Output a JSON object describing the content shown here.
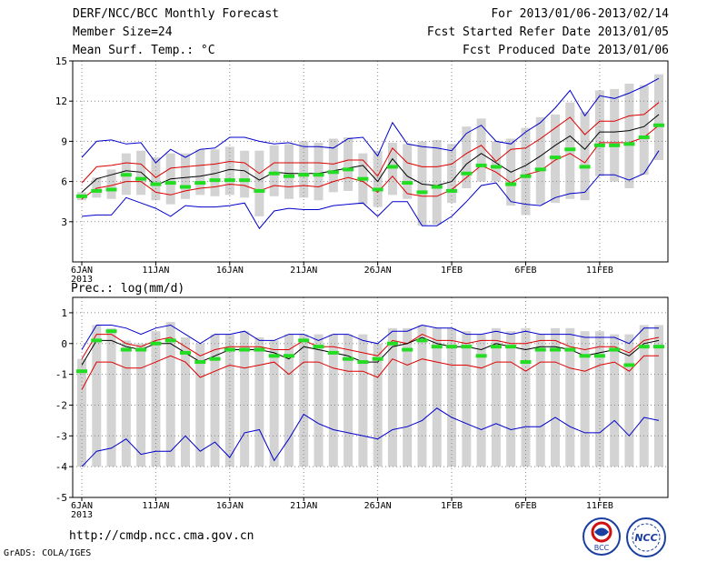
{
  "header": {
    "title": "DERF/NCC/BCC Monthly Forecast",
    "member_size": "Member Size=24",
    "variable": "Mean Surf. Temp.: °C",
    "period": "For 2013/01/06-2013/02/14",
    "fcst_started": "Fcst Started Refer Date 2013/01/05",
    "fcst_produced": "Fcst Produced Date 2013/01/06"
  },
  "footer": {
    "url": "http://cmdp.ncc.cma.gov.cn",
    "credit": "GrADS: COLA/IGES",
    "logo_left_text": "BCC",
    "logo_right_text": "NCC"
  },
  "colors": {
    "box": "#d3d3d3",
    "mean": "#000000",
    "inner": "#dd0000",
    "outer": "#0000cc",
    "obs": "#22dd22",
    "grid": "#888888"
  },
  "chart_data": [
    {
      "type": "box-line",
      "title": "Mean Surf. Temp.: °C",
      "x": [
        1,
        2,
        3,
        4,
        5,
        6,
        7,
        8,
        9,
        10,
        11,
        12,
        13,
        14,
        15,
        16,
        17,
        18,
        19,
        20,
        21,
        22,
        23,
        24,
        25,
        26,
        27,
        28,
        29,
        30,
        31,
        32,
        33,
        34,
        35,
        36,
        37,
        38,
        39,
        40
      ],
      "tick_labels": [
        "6JAN\n2013",
        "11JAN",
        "16JAN",
        "21JAN",
        "26JAN",
        "1FEB",
        "6FEB",
        "11FEB"
      ],
      "tick_positions": [
        1,
        6,
        11,
        16,
        21,
        26,
        31,
        36
      ],
      "ylim": [
        0,
        15
      ],
      "yticks": [
        3,
        6,
        9,
        12,
        15
      ],
      "series": [
        {
          "name": "max",
          "values": [
            7.8,
            9.0,
            9.1,
            8.8,
            8.9,
            7.4,
            8.4,
            7.8,
            8.4,
            8.5,
            9.3,
            9.3,
            9.0,
            8.8,
            8.9,
            8.6,
            8.6,
            8.5,
            9.2,
            9.3,
            7.9,
            10.4,
            8.8,
            8.6,
            8.5,
            8.3,
            9.6,
            10.2,
            9.0,
            8.8,
            9.7,
            10.4,
            11.5,
            12.8,
            10.9,
            12.4,
            12.2,
            12.6,
            13.1,
            13.7
          ]
        },
        {
          "name": "upper",
          "values": [
            5.9,
            7.1,
            7.2,
            7.4,
            7.3,
            6.3,
            7.0,
            7.1,
            7.2,
            7.3,
            7.5,
            7.4,
            6.6,
            7.4,
            7.4,
            7.4,
            7.4,
            7.3,
            7.6,
            7.6,
            6.4,
            8.5,
            7.4,
            7.1,
            7.1,
            7.3,
            8.1,
            8.7,
            7.5,
            8.4,
            8.5,
            9.2,
            10.0,
            10.8,
            9.5,
            10.5,
            10.5,
            10.9,
            11.0,
            11.9
          ]
        },
        {
          "name": "mean",
          "values": [
            5.2,
            6.2,
            6.5,
            6.8,
            6.7,
            5.7,
            6.2,
            6.3,
            6.4,
            6.6,
            6.9,
            6.8,
            6.1,
            6.7,
            6.6,
            6.6,
            6.6,
            6.8,
            7.0,
            7.2,
            6.0,
            7.7,
            6.4,
            5.8,
            5.7,
            6.0,
            7.3,
            8.1,
            7.4,
            6.7,
            7.2,
            7.9,
            8.7,
            9.4,
            8.4,
            9.7,
            9.7,
            9.8,
            10.1,
            11.0
          ]
        },
        {
          "name": "lower",
          "values": [
            4.7,
            5.5,
            5.7,
            6.0,
            6.0,
            5.2,
            5.0,
            5.3,
            5.5,
            5.6,
            5.8,
            5.7,
            5.3,
            5.7,
            5.6,
            5.7,
            5.6,
            6.0,
            6.3,
            6.0,
            5.2,
            6.4,
            5.1,
            4.9,
            4.9,
            5.4,
            6.3,
            7.2,
            6.7,
            5.9,
            6.5,
            6.8,
            7.6,
            8.1,
            7.4,
            8.9,
            8.9,
            8.9,
            9.3,
            10.2
          ]
        },
        {
          "name": "min",
          "values": [
            3.4,
            3.5,
            3.5,
            4.8,
            4.4,
            4.0,
            3.4,
            4.2,
            4.1,
            4.1,
            4.2,
            4.4,
            2.5,
            3.8,
            4.0,
            3.9,
            3.9,
            4.2,
            4.3,
            4.4,
            3.4,
            4.5,
            4.5,
            2.7,
            2.7,
            3.4,
            4.5,
            5.7,
            5.9,
            4.5,
            4.3,
            4.2,
            4.8,
            5.1,
            5.2,
            6.5,
            6.5,
            6.1,
            6.6,
            8.3
          ]
        }
      ],
      "box_low": [
        4.6,
        4.8,
        4.7,
        5.0,
        5.0,
        4.6,
        4.3,
        4.7,
        5.0,
        4.9,
        5.0,
        4.8,
        3.4,
        4.9,
        4.7,
        4.8,
        4.6,
        5.2,
        5.3,
        4.3,
        4.1,
        5.0,
        4.7,
        2.7,
        2.8,
        4.4,
        5.5,
        6.0,
        6.0,
        4.2,
        3.5,
        4.3,
        4.4,
        4.7,
        4.6,
        6.4,
        6.0,
        5.5,
        6.5,
        7.6
      ],
      "box_high": [
        5.2,
        6.3,
        6.9,
        8.1,
        8.3,
        7.8,
        8.1,
        8.1,
        8.4,
        8.4,
        8.6,
        8.3,
        8.3,
        8.7,
        8.8,
        9.0,
        8.9,
        9.2,
        9.3,
        8.1,
        8.3,
        8.9,
        8.8,
        9.0,
        9.1,
        8.8,
        10.1,
        10.7,
        9.0,
        9.2,
        10.0,
        10.8,
        11.0,
        11.9,
        11.2,
        12.8,
        12.9,
        13.3,
        13.2,
        14.0
      ],
      "obs": [
        4.9,
        5.3,
        5.4,
        6.5,
        6.2,
        5.8,
        5.9,
        5.6,
        5.9,
        6.1,
        6.1,
        6.1,
        5.3,
        6.6,
        6.4,
        6.5,
        6.5,
        6.7,
        6.9,
        6.2,
        5.4,
        7.1,
        5.9,
        5.2,
        5.6,
        5.3,
        6.6,
        7.2,
        7.1,
        5.8,
        6.4,
        6.9,
        7.8,
        8.4,
        7.1,
        8.7,
        8.7,
        8.8,
        9.3,
        10.2
      ]
    },
    {
      "type": "box-line",
      "title": "Prec.: log(mm/d)",
      "x": [
        1,
        2,
        3,
        4,
        5,
        6,
        7,
        8,
        9,
        10,
        11,
        12,
        13,
        14,
        15,
        16,
        17,
        18,
        19,
        20,
        21,
        22,
        23,
        24,
        25,
        26,
        27,
        28,
        29,
        30,
        31,
        32,
        33,
        34,
        35,
        36,
        37,
        38,
        39,
        40
      ],
      "tick_labels": [
        "6JAN\n2013",
        "11JAN",
        "16JAN",
        "21JAN",
        "26JAN",
        "1FEB",
        "6FEB",
        "11FEB"
      ],
      "tick_positions": [
        1,
        6,
        11,
        16,
        21,
        26,
        31,
        36
      ],
      "ylim": [
        -5,
        1.5
      ],
      "yticks": [
        -5,
        -4,
        -3,
        -2,
        -1,
        0,
        1
      ],
      "series": [
        {
          "name": "max",
          "values": [
            -0.2,
            0.6,
            0.6,
            0.5,
            0.3,
            0.5,
            0.6,
            0.3,
            0.0,
            0.3,
            0.3,
            0.4,
            0.1,
            0.1,
            0.3,
            0.3,
            0.1,
            0.3,
            0.3,
            0.1,
            0.0,
            0.4,
            0.4,
            0.6,
            0.5,
            0.5,
            0.3,
            0.3,
            0.4,
            0.3,
            0.4,
            0.3,
            0.3,
            0.3,
            0.2,
            0.2,
            0.2,
            0.0,
            0.5,
            0.5
          ]
        },
        {
          "name": "upper",
          "values": [
            -0.5,
            0.3,
            0.3,
            0.0,
            -0.1,
            0.1,
            0.2,
            -0.1,
            -0.4,
            -0.2,
            -0.1,
            -0.1,
            -0.1,
            -0.2,
            -0.2,
            0.1,
            -0.1,
            -0.1,
            -0.2,
            -0.3,
            -0.4,
            0.1,
            0.0,
            0.3,
            0.1,
            0.1,
            0.0,
            0.1,
            0.1,
            0.0,
            0.0,
            0.1,
            0.1,
            -0.1,
            -0.2,
            -0.1,
            -0.1,
            -0.3,
            0.1,
            0.2
          ]
        },
        {
          "name": "mean",
          "values": [
            -0.7,
            0.1,
            0.1,
            -0.1,
            -0.2,
            0.0,
            0.0,
            -0.3,
            -0.6,
            -0.4,
            -0.2,
            -0.2,
            -0.2,
            -0.3,
            -0.5,
            -0.1,
            -0.2,
            -0.3,
            -0.4,
            -0.6,
            -0.6,
            -0.1,
            0.0,
            0.2,
            0.0,
            -0.1,
            -0.1,
            -0.2,
            0.0,
            -0.1,
            -0.2,
            -0.1,
            -0.1,
            -0.2,
            -0.4,
            -0.3,
            -0.2,
            -0.4,
            0.0,
            0.1
          ]
        },
        {
          "name": "lower",
          "values": [
            -1.5,
            -0.6,
            -0.6,
            -0.8,
            -0.8,
            -0.6,
            -0.4,
            -0.6,
            -1.1,
            -0.9,
            -0.7,
            -0.8,
            -0.7,
            -0.6,
            -1.0,
            -0.6,
            -0.6,
            -0.8,
            -0.9,
            -0.9,
            -1.1,
            -0.5,
            -0.7,
            -0.5,
            -0.6,
            -0.7,
            -0.7,
            -0.8,
            -0.6,
            -0.6,
            -0.9,
            -0.6,
            -0.6,
            -0.8,
            -0.9,
            -0.7,
            -0.6,
            -0.9,
            -0.4,
            -0.4
          ]
        },
        {
          "name": "min",
          "values": [
            -4.0,
            -3.5,
            -3.4,
            -3.1,
            -3.6,
            -3.5,
            -3.5,
            -3.0,
            -3.5,
            -3.2,
            -3.7,
            -2.9,
            -2.8,
            -3.8,
            -3.1,
            -2.3,
            -2.6,
            -2.8,
            -2.9,
            -3.0,
            -3.1,
            -2.8,
            -2.7,
            -2.5,
            -2.1,
            -2.4,
            -2.6,
            -2.8,
            -2.6,
            -2.8,
            -2.7,
            -2.7,
            -2.4,
            -2.7,
            -2.9,
            -2.9,
            -2.5,
            -3.0,
            -2.4,
            -2.5
          ]
        },
        {
          "name": "obs",
          "values": []
        }
      ],
      "box_low": [
        -4.0,
        -4.0,
        -4.0,
        -4.0,
        -4.0,
        -4.0,
        -4.0,
        -4.0,
        -4.0,
        -4.0,
        -4.0,
        -4.0,
        -4.0,
        -4.0,
        -4.0,
        -4.0,
        -4.0,
        -4.0,
        -4.0,
        -4.0,
        -4.0,
        -4.0,
        -4.0,
        -4.0,
        -4.0,
        -4.0,
        -4.0,
        -4.0,
        -4.0,
        -4.0,
        -4.0,
        -4.0,
        -4.0,
        -4.0,
        -4.0,
        -4.0,
        -4.0,
        -4.0,
        -4.0,
        -4.0
      ],
      "box_high": [
        -0.5,
        0.6,
        0.5,
        0.1,
        0.0,
        0.4,
        0.7,
        0.2,
        0.0,
        0.3,
        0.3,
        0.4,
        0.2,
        0.1,
        0.3,
        0.3,
        0.3,
        0.3,
        0.3,
        0.3,
        0.0,
        0.5,
        0.5,
        0.6,
        0.5,
        0.5,
        0.4,
        0.3,
        0.5,
        0.4,
        0.5,
        0.3,
        0.5,
        0.5,
        0.4,
        0.4,
        0.3,
        0.3,
        0.6,
        0.6
      ],
      "obs": [
        -0.9,
        0.1,
        0.4,
        -0.2,
        -0.2,
        0.0,
        0.1,
        -0.3,
        -0.6,
        -0.5,
        -0.2,
        -0.2,
        -0.2,
        -0.4,
        -0.4,
        0.1,
        -0.1,
        -0.3,
        -0.5,
        -0.6,
        -0.5,
        0.0,
        -0.2,
        0.1,
        -0.1,
        -0.1,
        -0.1,
        -0.4,
        -0.1,
        -0.1,
        -0.6,
        -0.2,
        -0.2,
        -0.2,
        -0.4,
        -0.4,
        -0.2,
        -0.7,
        -0.1,
        -0.1
      ]
    }
  ]
}
